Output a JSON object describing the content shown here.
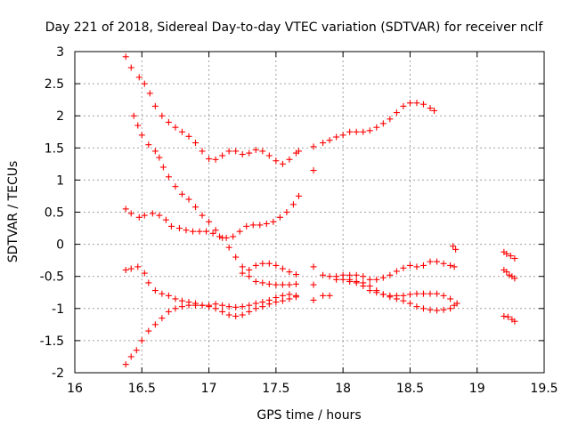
{
  "chart_data": {
    "type": "scatter",
    "title": "Day 221 of 2018, Sidereal Day-to-day VTEC variation (SDTVAR) for receiver nclf",
    "xlabel": "GPS time / hours",
    "ylabel": "SDTVAR / TECUs",
    "xlim": [
      16,
      19.5
    ],
    "ylim": [
      -2,
      3
    ],
    "x_ticks": [
      "16",
      "16.5",
      "17",
      "17.5",
      "18",
      "18.5",
      "19",
      "19.5"
    ],
    "y_ticks": [
      "3",
      "2.5",
      "2",
      "1.5",
      "1",
      "0.5",
      "0",
      "-0.5",
      "-1",
      "-1.5",
      "-2"
    ],
    "grid": true,
    "marker": "plus",
    "colors": {
      "series": "#ff0000"
    },
    "series": [
      {
        "points": [
          [
            16.38,
            2.92
          ],
          [
            16.42,
            2.75
          ],
          [
            16.48,
            2.6
          ],
          [
            16.52,
            2.5
          ],
          [
            16.56,
            2.35
          ],
          [
            16.6,
            2.15
          ],
          [
            16.65,
            2.0
          ],
          [
            16.7,
            1.9
          ],
          [
            16.75,
            1.82
          ],
          [
            16.8,
            1.75
          ],
          [
            16.85,
            1.68
          ],
          [
            16.9,
            1.58
          ],
          [
            16.95,
            1.45
          ],
          [
            17.0,
            1.33
          ],
          [
            17.05,
            1.32
          ],
          [
            17.1,
            1.38
          ],
          [
            17.15,
            1.45
          ],
          [
            17.2,
            1.45
          ],
          [
            17.25,
            1.4
          ],
          [
            17.3,
            1.42
          ],
          [
            17.35,
            1.47
          ],
          [
            17.4,
            1.45
          ],
          [
            17.45,
            1.38
          ],
          [
            17.5,
            1.3
          ],
          [
            17.55,
            1.25
          ],
          [
            17.6,
            1.32
          ],
          [
            17.65,
            1.42
          ],
          [
            17.67,
            1.45
          ]
        ]
      },
      {
        "points": [
          [
            17.78,
            1.15
          ],
          [
            17.78,
            1.52
          ],
          [
            17.85,
            1.58
          ],
          [
            17.9,
            1.62
          ],
          [
            17.95,
            1.67
          ],
          [
            18.0,
            1.7
          ],
          [
            18.05,
            1.75
          ],
          [
            18.1,
            1.75
          ],
          [
            18.15,
            1.75
          ],
          [
            18.2,
            1.77
          ],
          [
            18.25,
            1.82
          ],
          [
            18.3,
            1.88
          ],
          [
            18.35,
            1.95
          ],
          [
            18.4,
            2.05
          ],
          [
            18.45,
            2.15
          ],
          [
            18.5,
            2.2
          ],
          [
            18.55,
            2.2
          ],
          [
            18.6,
            2.18
          ],
          [
            18.65,
            2.12
          ],
          [
            18.68,
            2.08
          ]
        ]
      },
      {
        "points": [
          [
            16.44,
            2.0
          ],
          [
            16.47,
            1.85
          ],
          [
            16.5,
            1.7
          ],
          [
            16.55,
            1.55
          ],
          [
            16.6,
            1.45
          ],
          [
            16.63,
            1.35
          ],
          [
            16.66,
            1.2
          ],
          [
            16.7,
            1.05
          ],
          [
            16.75,
            0.9
          ],
          [
            16.8,
            0.78
          ],
          [
            16.85,
            0.7
          ],
          [
            16.9,
            0.58
          ],
          [
            16.95,
            0.45
          ],
          [
            17.0,
            0.35
          ],
          [
            17.05,
            0.22
          ],
          [
            17.1,
            0.1
          ],
          [
            17.15,
            -0.05
          ],
          [
            17.2,
            -0.2
          ],
          [
            17.25,
            -0.35
          ],
          [
            17.3,
            -0.5
          ],
          [
            17.35,
            -0.58
          ],
          [
            17.4,
            -0.6
          ],
          [
            17.45,
            -0.62
          ],
          [
            17.5,
            -0.63
          ],
          [
            17.55,
            -0.63
          ],
          [
            17.6,
            -0.63
          ],
          [
            17.65,
            -0.62
          ]
        ]
      },
      {
        "points": [
          [
            16.38,
            0.55
          ],
          [
            16.42,
            0.48
          ],
          [
            16.48,
            0.42
          ],
          [
            16.52,
            0.45
          ],
          [
            16.58,
            0.48
          ],
          [
            16.63,
            0.45
          ],
          [
            16.68,
            0.38
          ],
          [
            16.72,
            0.28
          ],
          [
            16.78,
            0.25
          ],
          [
            16.83,
            0.22
          ],
          [
            16.88,
            0.2
          ],
          [
            16.93,
            0.2
          ],
          [
            16.98,
            0.2
          ],
          [
            17.03,
            0.17
          ],
          [
            17.08,
            0.12
          ],
          [
            17.13,
            0.1
          ],
          [
            17.18,
            0.12
          ],
          [
            17.23,
            0.2
          ],
          [
            17.28,
            0.28
          ],
          [
            17.33,
            0.3
          ],
          [
            17.38,
            0.3
          ],
          [
            17.43,
            0.32
          ],
          [
            17.48,
            0.35
          ],
          [
            17.53,
            0.42
          ],
          [
            17.58,
            0.5
          ],
          [
            17.63,
            0.62
          ],
          [
            17.67,
            0.75
          ]
        ]
      },
      {
        "points": [
          [
            16.38,
            -0.4
          ],
          [
            16.42,
            -0.38
          ],
          [
            16.47,
            -0.35
          ],
          [
            16.52,
            -0.45
          ],
          [
            16.55,
            -0.6
          ],
          [
            16.6,
            -0.72
          ],
          [
            16.65,
            -0.77
          ],
          [
            16.7,
            -0.8
          ],
          [
            16.75,
            -0.85
          ],
          [
            16.8,
            -0.88
          ],
          [
            16.85,
            -0.9
          ],
          [
            16.9,
            -0.92
          ],
          [
            16.95,
            -0.95
          ],
          [
            17.0,
            -0.97
          ],
          [
            17.05,
            -1.0
          ],
          [
            17.1,
            -1.05
          ],
          [
            17.15,
            -1.1
          ],
          [
            17.2,
            -1.12
          ],
          [
            17.25,
            -1.1
          ],
          [
            17.3,
            -1.05
          ],
          [
            17.35,
            -1.0
          ],
          [
            17.4,
            -0.97
          ],
          [
            17.45,
            -0.93
          ],
          [
            17.5,
            -0.9
          ],
          [
            17.55,
            -0.88
          ],
          [
            17.6,
            -0.85
          ],
          [
            17.65,
            -0.82
          ]
        ]
      },
      {
        "points": [
          [
            16.38,
            -1.87
          ],
          [
            16.42,
            -1.75
          ],
          [
            16.46,
            -1.65
          ],
          [
            16.5,
            -1.5
          ],
          [
            16.55,
            -1.35
          ],
          [
            16.6,
            -1.25
          ],
          [
            16.65,
            -1.15
          ],
          [
            16.7,
            -1.05
          ],
          [
            16.75,
            -1.0
          ],
          [
            16.8,
            -0.97
          ],
          [
            16.85,
            -0.95
          ],
          [
            16.9,
            -0.95
          ],
          [
            16.95,
            -0.95
          ],
          [
            17.0,
            -0.95
          ],
          [
            17.05,
            -0.93
          ],
          [
            17.1,
            -0.95
          ],
          [
            17.15,
            -0.97
          ],
          [
            17.2,
            -0.98
          ],
          [
            17.25,
            -0.97
          ],
          [
            17.3,
            -0.95
          ],
          [
            17.35,
            -0.92
          ],
          [
            17.4,
            -0.9
          ],
          [
            17.45,
            -0.87
          ],
          [
            17.5,
            -0.83
          ],
          [
            17.55,
            -0.8
          ],
          [
            17.6,
            -0.78
          ],
          [
            17.65,
            -0.8
          ]
        ]
      },
      {
        "points": [
          [
            17.25,
            -0.45
          ],
          [
            17.3,
            -0.4
          ],
          [
            17.35,
            -0.33
          ],
          [
            17.4,
            -0.3
          ],
          [
            17.45,
            -0.3
          ],
          [
            17.5,
            -0.33
          ],
          [
            17.55,
            -0.38
          ],
          [
            17.6,
            -0.43
          ],
          [
            17.65,
            -0.47
          ]
        ]
      },
      {
        "points": [
          [
            17.78,
            -0.35
          ],
          [
            17.78,
            -0.63
          ],
          [
            17.78,
            -0.87
          ],
          [
            17.85,
            -0.48
          ],
          [
            17.85,
            -0.8
          ],
          [
            17.9,
            -0.5
          ],
          [
            17.9,
            -0.8
          ],
          [
            17.95,
            -0.5
          ],
          [
            18.0,
            -0.48
          ],
          [
            18.05,
            -0.48
          ],
          [
            18.1,
            -0.48
          ],
          [
            18.15,
            -0.5
          ],
          [
            18.2,
            -0.55
          ],
          [
            18.25,
            -0.55
          ],
          [
            18.3,
            -0.52
          ],
          [
            18.35,
            -0.48
          ],
          [
            18.4,
            -0.42
          ],
          [
            18.45,
            -0.37
          ],
          [
            18.5,
            -0.33
          ],
          [
            18.55,
            -0.35
          ],
          [
            18.6,
            -0.33
          ],
          [
            18.65,
            -0.27
          ],
          [
            18.7,
            -0.27
          ],
          [
            18.75,
            -0.3
          ],
          [
            18.8,
            -0.33
          ],
          [
            18.83,
            -0.35
          ]
        ]
      },
      {
        "points": [
          [
            17.95,
            -0.55
          ],
          [
            18.0,
            -0.55
          ],
          [
            18.05,
            -0.58
          ],
          [
            18.1,
            -0.6
          ],
          [
            18.15,
            -0.65
          ],
          [
            18.2,
            -0.72
          ],
          [
            18.25,
            -0.75
          ],
          [
            18.3,
            -0.78
          ],
          [
            18.35,
            -0.8
          ],
          [
            18.4,
            -0.8
          ],
          [
            18.45,
            -0.8
          ],
          [
            18.5,
            -0.78
          ],
          [
            18.55,
            -0.77
          ],
          [
            18.6,
            -0.77
          ],
          [
            18.65,
            -0.77
          ],
          [
            18.7,
            -0.77
          ],
          [
            18.75,
            -0.8
          ],
          [
            18.8,
            -0.85
          ],
          [
            18.85,
            -0.92
          ]
        ]
      },
      {
        "points": [
          [
            18.05,
            -0.55
          ],
          [
            18.1,
            -0.58
          ],
          [
            18.15,
            -0.6
          ],
          [
            18.2,
            -0.65
          ],
          [
            18.25,
            -0.72
          ],
          [
            18.3,
            -0.78
          ],
          [
            18.35,
            -0.82
          ],
          [
            18.4,
            -0.85
          ],
          [
            18.45,
            -0.88
          ],
          [
            18.5,
            -0.92
          ],
          [
            18.55,
            -0.97
          ],
          [
            18.6,
            -1.0
          ],
          [
            18.65,
            -1.02
          ],
          [
            18.7,
            -1.03
          ],
          [
            18.75,
            -1.02
          ],
          [
            18.8,
            -1.0
          ],
          [
            18.83,
            -0.95
          ]
        ]
      },
      {
        "points": [
          [
            18.82,
            -0.03
          ],
          [
            18.84,
            -0.08
          ],
          [
            19.2,
            -0.12
          ],
          [
            19.22,
            -0.15
          ],
          [
            19.25,
            -0.18
          ],
          [
            19.28,
            -0.22
          ],
          [
            19.2,
            -0.4
          ],
          [
            19.22,
            -0.43
          ],
          [
            19.24,
            -0.48
          ],
          [
            19.26,
            -0.5
          ],
          [
            19.28,
            -0.53
          ],
          [
            19.2,
            -1.12
          ],
          [
            19.23,
            -1.13
          ],
          [
            19.26,
            -1.17
          ],
          [
            19.28,
            -1.2
          ]
        ]
      }
    ]
  }
}
